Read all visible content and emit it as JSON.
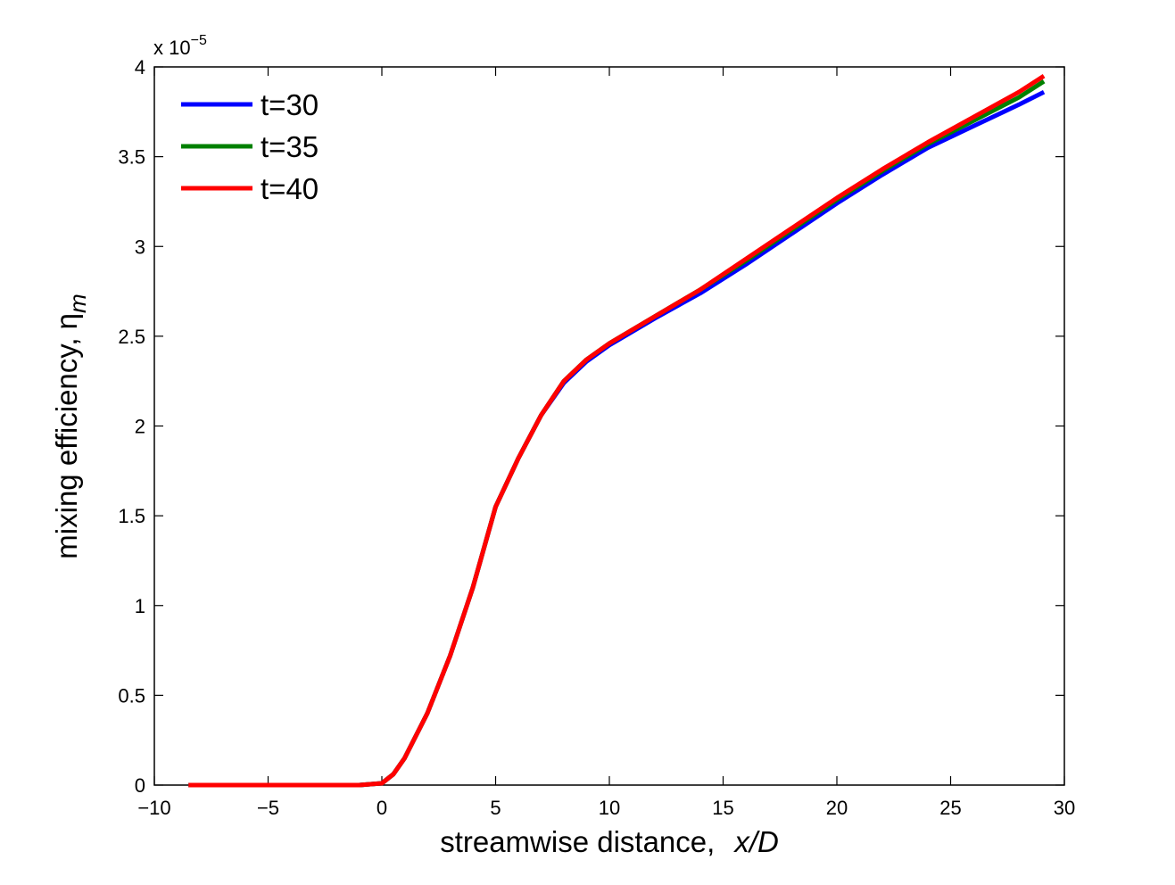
{
  "chart_data": {
    "type": "line",
    "xlabel_prefix": "streamwise distance,",
    "xlabel_var": "x/D",
    "ylabel_prefix": "mixing efficiency, η",
    "ylabel_sub": "m",
    "y_exponent_base": "x 10",
    "y_exponent_power": "−5",
    "xlim": [
      -10,
      30
    ],
    "ylim": [
      0,
      4
    ],
    "xticks": [
      -10,
      -5,
      0,
      5,
      10,
      15,
      20,
      25,
      30
    ],
    "xtick_labels": [
      "−10",
      "−5",
      "0",
      "5",
      "10",
      "15",
      "20",
      "25",
      "30"
    ],
    "yticks": [
      0,
      0.5,
      1,
      1.5,
      2,
      2.5,
      3,
      3.5,
      4
    ],
    "ytick_labels": [
      "0",
      "0.5",
      "1",
      "1.5",
      "2",
      "2.5",
      "3",
      "3.5",
      "4"
    ],
    "legend_position": "top-left",
    "series": [
      {
        "name": "t=30",
        "color": "#0000ff",
        "points": [
          [
            -8.5,
            0
          ],
          [
            -5,
            0
          ],
          [
            -1,
            0
          ],
          [
            0,
            0.01
          ],
          [
            0.5,
            0.06
          ],
          [
            1,
            0.15
          ],
          [
            2,
            0.4
          ],
          [
            3,
            0.72
          ],
          [
            4,
            1.1
          ],
          [
            5,
            1.55
          ],
          [
            6,
            1.82
          ],
          [
            7,
            2.06
          ],
          [
            8,
            2.24
          ],
          [
            9,
            2.36
          ],
          [
            10,
            2.45
          ],
          [
            12,
            2.6
          ],
          [
            14,
            2.74
          ],
          [
            16,
            2.9
          ],
          [
            18,
            3.07
          ],
          [
            20,
            3.24
          ],
          [
            22,
            3.4
          ],
          [
            24,
            3.55
          ],
          [
            26,
            3.67
          ],
          [
            28,
            3.79
          ],
          [
            29.1,
            3.86
          ]
        ]
      },
      {
        "name": "t=35",
        "color": "#008000",
        "points": [
          [
            -8.5,
            0
          ],
          [
            -5,
            0
          ],
          [
            -1,
            0
          ],
          [
            0,
            0.01
          ],
          [
            0.5,
            0.06
          ],
          [
            1,
            0.15
          ],
          [
            2,
            0.4
          ],
          [
            3,
            0.72
          ],
          [
            4,
            1.1
          ],
          [
            5,
            1.55
          ],
          [
            6,
            1.82
          ],
          [
            7,
            2.06
          ],
          [
            8,
            2.25
          ],
          [
            9,
            2.37
          ],
          [
            10,
            2.46
          ],
          [
            12,
            2.61
          ],
          [
            14,
            2.76
          ],
          [
            16,
            2.92
          ],
          [
            18,
            3.09
          ],
          [
            20,
            3.26
          ],
          [
            22,
            3.42
          ],
          [
            24,
            3.57
          ],
          [
            26,
            3.7
          ],
          [
            28,
            3.83
          ],
          [
            29.1,
            3.92
          ]
        ]
      },
      {
        "name": "t=40",
        "color": "#ff0000",
        "points": [
          [
            -8.5,
            0
          ],
          [
            -5,
            0
          ],
          [
            -1,
            0
          ],
          [
            0,
            0.01
          ],
          [
            0.5,
            0.06
          ],
          [
            1,
            0.15
          ],
          [
            2,
            0.4
          ],
          [
            3,
            0.72
          ],
          [
            4,
            1.1
          ],
          [
            5,
            1.55
          ],
          [
            6,
            1.82
          ],
          [
            7,
            2.06
          ],
          [
            8,
            2.25
          ],
          [
            9,
            2.37
          ],
          [
            10,
            2.46
          ],
          [
            12,
            2.61
          ],
          [
            14,
            2.76
          ],
          [
            16,
            2.93
          ],
          [
            18,
            3.1
          ],
          [
            20,
            3.27
          ],
          [
            22,
            3.43
          ],
          [
            24,
            3.58
          ],
          [
            26,
            3.72
          ],
          [
            28,
            3.86
          ],
          [
            29.1,
            3.95
          ]
        ]
      }
    ]
  }
}
